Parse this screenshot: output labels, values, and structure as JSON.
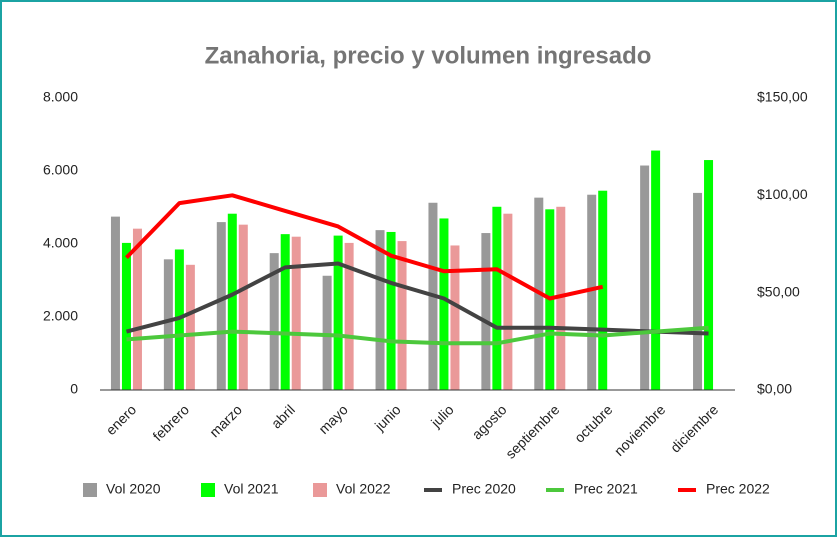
{
  "chart_data": {
    "type": "bar_line",
    "title": "Zanahoria, precio y volumen ingresado",
    "categories": [
      "enero",
      "febrero",
      "marzo",
      "abril",
      "mayo",
      "junio",
      "julio",
      "agosto",
      "septiembre",
      "octubre",
      "noviembre",
      "diciembre"
    ],
    "series": [
      {
        "name": "Vol 2020",
        "type": "bar",
        "color": "#999999",
        "values": [
          4750,
          3580,
          4600,
          3750,
          3130,
          4380,
          5130,
          4300,
          5270,
          5350,
          6150,
          5400
        ]
      },
      {
        "name": "Vol 2021",
        "type": "bar",
        "color": "#00ff00",
        "values": [
          4030,
          3850,
          4830,
          4270,
          4230,
          4330,
          4700,
          5020,
          4950,
          5460,
          6560,
          6300
        ]
      },
      {
        "name": "Vol 2022",
        "type": "bar",
        "color": "#ea9999",
        "values": [
          4420,
          3430,
          4530,
          4200,
          4030,
          4080,
          3960,
          4830,
          5020,
          null,
          null,
          null
        ]
      },
      {
        "name": "Prec 2020",
        "type": "line",
        "axis": "y2",
        "color": "#434343",
        "values": [
          30,
          37,
          49,
          63,
          65,
          55,
          47,
          32,
          32,
          31,
          30,
          29
        ]
      },
      {
        "name": "Prec 2021",
        "type": "line",
        "axis": "y2",
        "color": "#4cc83c",
        "values": [
          26,
          28,
          30,
          29,
          28,
          25,
          24,
          24,
          29,
          28,
          30,
          32
        ]
      },
      {
        "name": "Prec 2022",
        "type": "line",
        "axis": "y2",
        "color": "#ff0000",
        "values": [
          68,
          96,
          100,
          92,
          84,
          69,
          61,
          62,
          47,
          53,
          null,
          null
        ]
      }
    ],
    "ylim": [
      0,
      8000
    ],
    "yticks": [
      0,
      {
        "value": 2000,
        "label": "2.000"
      },
      {
        "value": 4000,
        "label": "4.000"
      },
      {
        "value": 6000,
        "label": "6.000"
      },
      {
        "value": 8000,
        "label": "8.000"
      }
    ],
    "y2lim": [
      0,
      150
    ],
    "y2ticks": [
      {
        "value": 0,
        "label": "$0,00"
      },
      {
        "value": 50,
        "label": "$50,00"
      },
      {
        "value": 100,
        "label": "$100,00"
      },
      {
        "value": 150,
        "label": "$150,00"
      }
    ],
    "grid": false,
    "legend": "bottom"
  }
}
